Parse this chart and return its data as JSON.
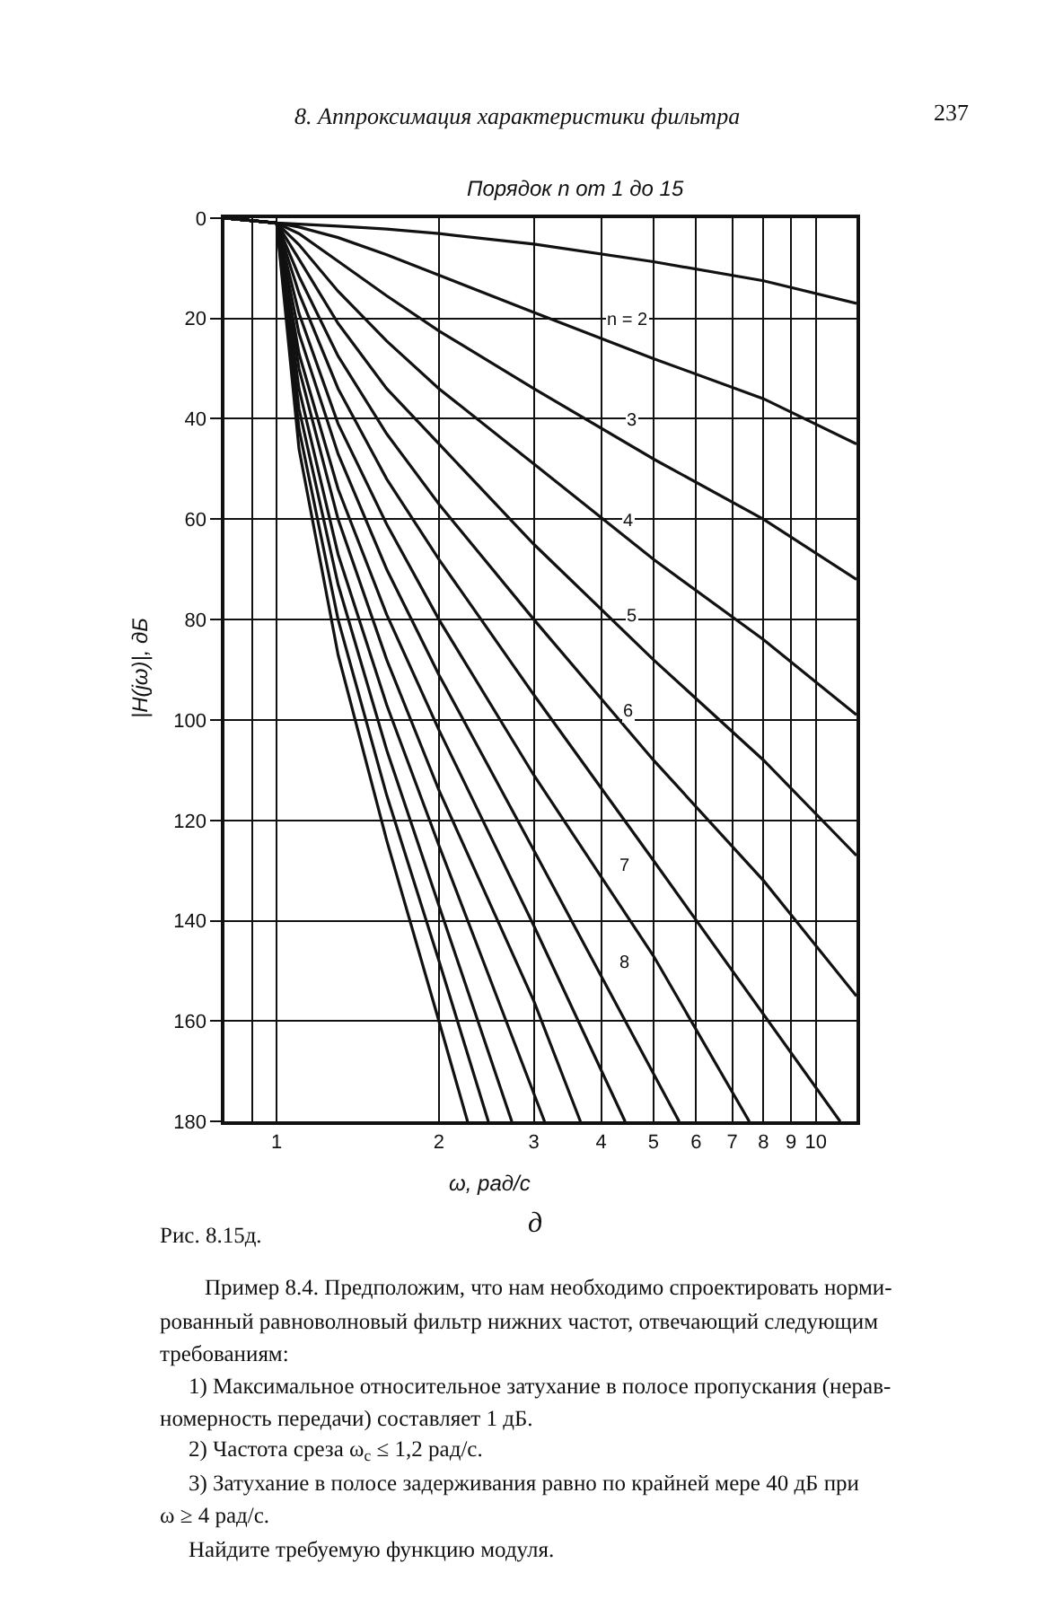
{
  "chart_data": {
    "type": "line",
    "title": "Порядок n от 1 до 15",
    "xlabel": "ω, рад/с",
    "ylabel": "|H(jω)|, дБ",
    "log": "x",
    "grid": true,
    "marker": "none",
    "line_style": "solid",
    "xlim": [
      0.8,
      11.9
    ],
    "xticks": [
      {
        "value": 0.9,
        "label": null
      },
      1,
      2,
      3,
      4,
      5,
      6,
      7,
      8,
      9,
      10
    ],
    "ylim": [
      180,
      0
    ],
    "yticks": [
      0,
      20,
      40,
      60,
      80,
      100,
      120,
      140,
      160,
      180
    ],
    "series": [
      {
        "color": "#111111",
        "x": [
          0.8,
          1,
          1.1,
          1.3,
          1.6,
          2,
          3,
          5,
          8,
          11.9
        ],
        "values": [
          0,
          1,
          1.2,
          1.6,
          2.2,
          3.1,
          5.2,
          8.7,
          12.5,
          17
        ]
      },
      {
        "color": "#111111",
        "x": [
          0.8,
          1,
          1.1,
          1.3,
          1.6,
          2,
          3,
          5,
          8,
          11.9
        ],
        "values": [
          0,
          1,
          1.8,
          3.9,
          7.3,
          11.4,
          18.8,
          28,
          36,
          45
        ]
      },
      {
        "color": "#111111",
        "x": [
          0.8,
          1,
          1.1,
          1.3,
          1.6,
          2,
          3,
          5,
          8,
          11.9
        ],
        "values": [
          0,
          1,
          3.1,
          8.6,
          15.5,
          22.5,
          34,
          48,
          60,
          72
        ]
      },
      {
        "color": "#111111",
        "x": [
          0.8,
          1,
          1.1,
          1.3,
          1.6,
          2,
          3,
          5,
          8,
          11.9
        ],
        "values": [
          0,
          1,
          5.3,
          14.6,
          24.5,
          34,
          49,
          68,
          84,
          99
        ]
      },
      {
        "color": "#111111",
        "x": [
          0.8,
          1,
          1.1,
          1.3,
          1.6,
          2,
          3,
          5,
          8,
          11.9
        ],
        "values": [
          0,
          1,
          8.2,
          21,
          34,
          45,
          65,
          88,
          108,
          127
        ]
      },
      {
        "color": "#111111",
        "x": [
          0.8,
          1,
          1.1,
          1.3,
          1.6,
          2,
          3,
          5,
          8,
          11.9
        ],
        "values": [
          0,
          1,
          11.6,
          27.5,
          43,
          57,
          80,
          108,
          132,
          155
        ]
      },
      {
        "color": "#111111",
        "x": [
          0.8,
          1,
          1.1,
          1.3,
          1.6,
          2,
          3,
          5,
          11.1
        ],
        "values": [
          0,
          1,
          15,
          34,
          52,
          68,
          95,
          128,
          180
        ]
      },
      {
        "color": "#111111",
        "x": [
          0.8,
          1,
          1.1,
          1.3,
          1.6,
          2,
          3,
          5,
          7.53
        ],
        "values": [
          0,
          1,
          19,
          41,
          61,
          80,
          111,
          147,
          180
        ]
      },
      {
        "color": "#111111",
        "x": [
          0.8,
          1,
          1.1,
          1.3,
          1.6,
          2,
          3,
          5.58
        ],
        "values": [
          0,
          1,
          23,
          47,
          70,
          91,
          126,
          180
        ]
      },
      {
        "color": "#111111",
        "x": [
          0.8,
          1,
          1.1,
          1.3,
          1.6,
          2,
          3,
          4.43
        ],
        "values": [
          0,
          1,
          27,
          54,
          79,
          102,
          141,
          180
        ]
      },
      {
        "color": "#111111",
        "x": [
          0.8,
          1,
          1.1,
          1.3,
          1.6,
          2,
          3,
          3.66
        ],
        "values": [
          0,
          1,
          30,
          60,
          88,
          114,
          156,
          180
        ]
      },
      {
        "color": "#111111",
        "x": [
          0.8,
          1,
          1.1,
          1.3,
          1.6,
          2,
          3.14
        ],
        "values": [
          0,
          1,
          34,
          67,
          97,
          125,
          180
        ]
      },
      {
        "color": "#111111",
        "x": [
          0.8,
          1,
          1.1,
          1.3,
          1.6,
          2,
          2.73
        ],
        "values": [
          0,
          1,
          38,
          73,
          106,
          137,
          180
        ]
      },
      {
        "color": "#111111",
        "x": [
          0.8,
          1,
          1.1,
          1.3,
          1.6,
          2,
          2.47
        ],
        "values": [
          0,
          1,
          42,
          80,
          115,
          148,
          180
        ]
      },
      {
        "color": "#111111",
        "x": [
          0.8,
          1,
          1.1,
          1.3,
          1.6,
          2,
          2.26
        ],
        "values": [
          0,
          1,
          46,
          87,
          124,
          160,
          180
        ]
      }
    ],
    "annotations": [
      "8. Аппроксимация характеристики фильтра",
      "237",
      "д",
      "Рис. 8.15д.",
      "Пример 8.4. Предположим, что нам необходимо спроектировать норми-",
      "рованный равноволновый фильтр нижних частот, отвечающий следующим",
      "требованиям:",
      "1) Максимальное относительное затухание в полосе пропускания (нерав-",
      "номерность передачи) составляет 1 дБ.",
      "2) Частота среза ω$_{c}$ ≤ 1,2 рад/с.",
      "3) Затухание в полосе задерживания равно по крайней мере 40 дБ при",
      "ω ≥ 4 рад/с.",
      "Найдите требуемую функцию модуля.",
      "n = 2",
      "3",
      "4",
      "5",
      "6",
      "7",
      "8"
    ]
  }
}
